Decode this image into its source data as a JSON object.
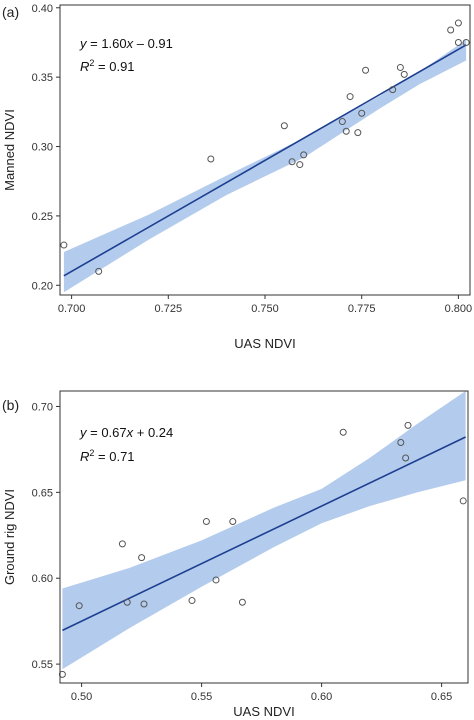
{
  "chart_data": [
    {
      "type": "scatter",
      "panel_label": "(a)",
      "xlabel": "UAS NDVI",
      "ylabel": "Manned NDVI",
      "xlim": [
        0.697,
        0.803
      ],
      "ylim": [
        0.193,
        0.402
      ],
      "xticks": [
        0.7,
        0.725,
        0.75,
        0.775,
        0.8
      ],
      "xtick_labels": [
        "0.700",
        "0.725",
        "0.750",
        "0.775",
        "0.800"
      ],
      "yticks": [
        0.2,
        0.25,
        0.3,
        0.35,
        0.4
      ],
      "ytick_labels": [
        "0.20",
        "0.25",
        "0.30",
        "0.35",
        "0.40"
      ],
      "equation_lhs": "y",
      "equation_rhs": " = 1.60",
      "equation_var": "x",
      "equation_tail": " – 0.91",
      "r2_label": "R",
      "r2_exp": "2",
      "r2_value": " = 0.91",
      "grid": false,
      "fit": {
        "slope": 1.6,
        "intercept": -0.91,
        "x_range": [
          0.698,
          0.802
        ]
      },
      "ci_upper": [
        [
          0.698,
          0.224
        ],
        [
          0.72,
          0.251
        ],
        [
          0.74,
          0.279
        ],
        [
          0.76,
          0.306
        ],
        [
          0.78,
          0.337
        ],
        [
          0.79,
          0.354
        ],
        [
          0.802,
          0.377
        ]
      ],
      "ci_lower": [
        [
          0.802,
          0.362
        ],
        [
          0.79,
          0.345
        ],
        [
          0.78,
          0.328
        ],
        [
          0.76,
          0.292
        ],
        [
          0.74,
          0.265
        ],
        [
          0.72,
          0.233
        ],
        [
          0.698,
          0.195
        ]
      ],
      "points": [
        [
          0.698,
          0.229
        ],
        [
          0.707,
          0.21
        ],
        [
          0.736,
          0.291
        ],
        [
          0.755,
          0.315
        ],
        [
          0.757,
          0.289
        ],
        [
          0.759,
          0.287
        ],
        [
          0.76,
          0.294
        ],
        [
          0.77,
          0.318
        ],
        [
          0.771,
          0.311
        ],
        [
          0.772,
          0.336
        ],
        [
          0.774,
          0.31
        ],
        [
          0.775,
          0.324
        ],
        [
          0.776,
          0.355
        ],
        [
          0.783,
          0.341
        ],
        [
          0.785,
          0.357
        ],
        [
          0.786,
          0.352
        ],
        [
          0.798,
          0.384
        ],
        [
          0.8,
          0.389
        ],
        [
          0.8,
          0.375
        ],
        [
          0.802,
          0.375
        ]
      ],
      "colors": {
        "band": "#b3cbec",
        "line": "#1c3f91",
        "point": "#555555"
      }
    },
    {
      "type": "scatter",
      "panel_label": "(b)",
      "xlabel": "UAS NDVI",
      "ylabel": "Ground rig NDVI",
      "xlim": [
        0.491,
        0.661
      ],
      "ylim": [
        0.539,
        0.709
      ],
      "xticks": [
        0.5,
        0.55,
        0.6,
        0.65
      ],
      "xtick_labels": [
        "0.50",
        "0.55",
        "0.60",
        "0.65"
      ],
      "yticks": [
        0.55,
        0.6,
        0.65,
        0.7
      ],
      "ytick_labels": [
        "0.55",
        "0.60",
        "0.65",
        "0.70"
      ],
      "equation_lhs": "y",
      "equation_rhs": " = 0.67",
      "equation_var": "x",
      "equation_tail": " + 0.24",
      "r2_label": "R",
      "r2_exp": "2",
      "r2_value": " = 0.71",
      "grid": false,
      "fit": {
        "slope": 0.67,
        "intercept": 0.24,
        "x_range": [
          0.492,
          0.66
        ]
      },
      "ci_upper": [
        [
          0.492,
          0.594
        ],
        [
          0.52,
          0.606
        ],
        [
          0.55,
          0.622
        ],
        [
          0.58,
          0.641
        ],
        [
          0.6,
          0.652
        ],
        [
          0.62,
          0.67
        ],
        [
          0.64,
          0.69
        ],
        [
          0.66,
          0.709
        ]
      ],
      "ci_lower": [
        [
          0.66,
          0.657
        ],
        [
          0.64,
          0.65
        ],
        [
          0.62,
          0.642
        ],
        [
          0.6,
          0.632
        ],
        [
          0.58,
          0.618
        ],
        [
          0.55,
          0.595
        ],
        [
          0.52,
          0.571
        ],
        [
          0.492,
          0.547
        ]
      ],
      "points": [
        [
          0.492,
          0.544
        ],
        [
          0.499,
          0.584
        ],
        [
          0.517,
          0.62
        ],
        [
          0.519,
          0.586
        ],
        [
          0.525,
          0.612
        ],
        [
          0.526,
          0.585
        ],
        [
          0.546,
          0.587
        ],
        [
          0.552,
          0.633
        ],
        [
          0.556,
          0.599
        ],
        [
          0.563,
          0.633
        ],
        [
          0.567,
          0.586
        ],
        [
          0.609,
          0.685
        ],
        [
          0.633,
          0.679
        ],
        [
          0.635,
          0.67
        ],
        [
          0.636,
          0.689
        ],
        [
          0.659,
          0.645
        ]
      ],
      "colors": {
        "band": "#b3cbec",
        "line": "#1c3f91",
        "point": "#555555"
      }
    }
  ]
}
